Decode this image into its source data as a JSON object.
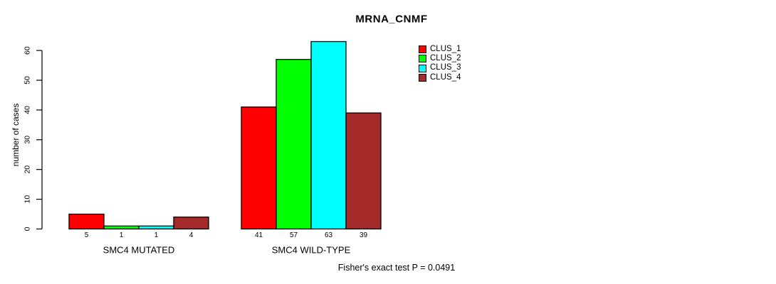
{
  "chart_data": {
    "type": "bar",
    "title": "MRNA_CNMF",
    "ylabel": "number of cases",
    "xlabel": "",
    "ylim": [
      0,
      63
    ],
    "yticks": [
      0,
      10,
      20,
      30,
      40,
      50,
      60
    ],
    "grid": false,
    "legend_position": "top-right",
    "categories": [
      "SMC4 MUTATED",
      "SMC4 WILD-TYPE"
    ],
    "series": [
      {
        "name": "CLUS_1",
        "color": "#FF0000",
        "values": [
          5,
          41
        ]
      },
      {
        "name": "CLUS_2",
        "color": "#00FF00",
        "values": [
          1,
          57
        ]
      },
      {
        "name": "CLUS_3",
        "color": "#00FFFF",
        "values": [
          1,
          63
        ]
      },
      {
        "name": "CLUS_4",
        "color": "#A52A2A",
        "values": [
          4,
          39
        ]
      }
    ],
    "bar_value_labels": true,
    "annotation": "Fisher's exact test P = 0.0491",
    "axis_color": "#000000",
    "bar_border_color": "#000000"
  }
}
